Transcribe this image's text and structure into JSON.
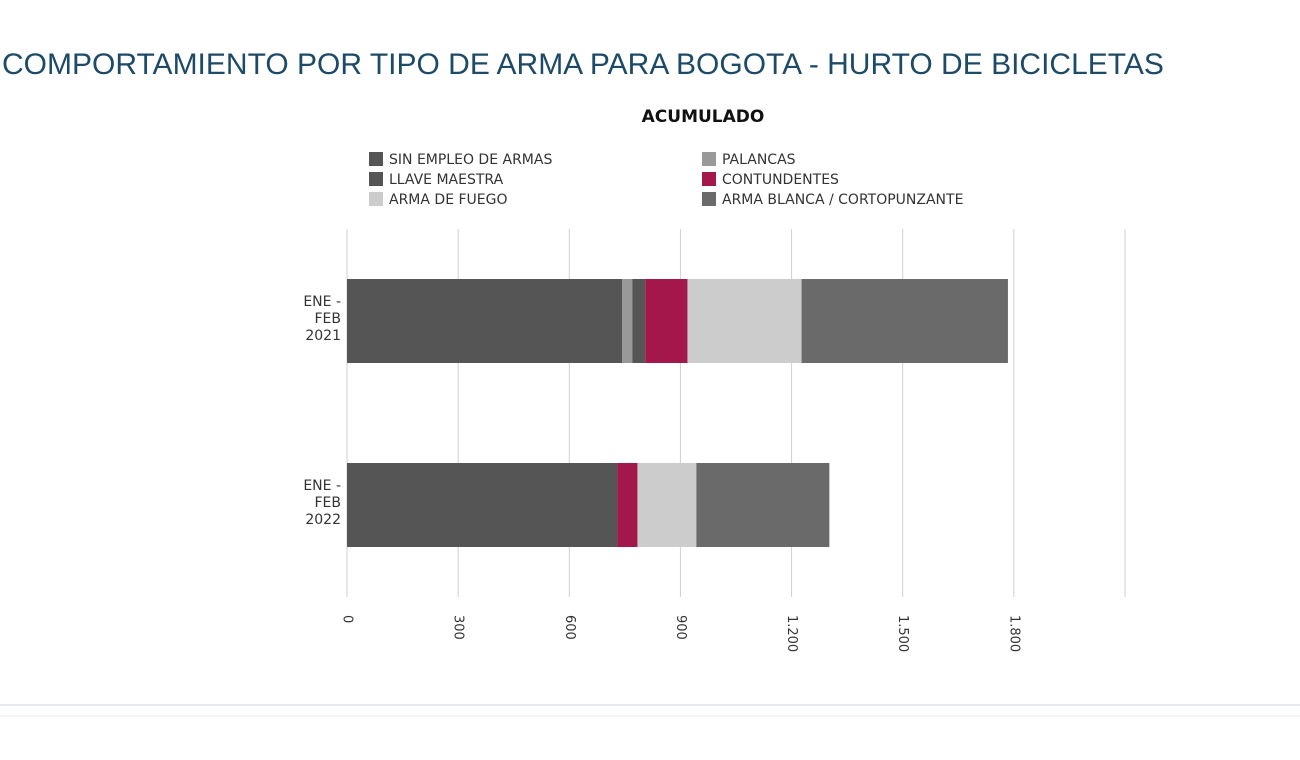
{
  "chart_data": {
    "type": "stacked_barh",
    "title": "COMPORTAMIENTO POR TIPO DE ARMA PARA BOGOTA - HURTO DE BICICLETAS",
    "subtitle": "ACUMULADO",
    "categories": [
      "ENE - FEB 2021",
      "ENE - FEB 2022"
    ],
    "series": [
      {
        "name": "SIN EMPLEO DE ARMAS",
        "color": "#555555",
        "values": [
          743,
          730
        ]
      },
      {
        "name": "PALANCAS",
        "color": "#999999",
        "values": [
          27,
          0
        ]
      },
      {
        "name": "LLAVE MAESTRA",
        "color": "#555555",
        "values": [
          35,
          0
        ]
      },
      {
        "name": "CONTUNDENTES",
        "color": "#a3174a",
        "values": [
          114,
          54
        ]
      },
      {
        "name": "ARMA DE FUEGO",
        "color": "#cccccc",
        "values": [
          308,
          159
        ]
      },
      {
        "name": "ARMA BLANCA / CORTOPUNZANTE",
        "color": "#6a6a6a",
        "values": [
          557,
          359
        ]
      }
    ],
    "xlim": [
      0,
      2100
    ],
    "xticks": [
      0,
      300,
      600,
      {
        "value": 900,
        "label": "900"
      },
      {
        "value": 1200,
        "label": "1.200"
      },
      {
        "value": 1500,
        "label": "1.500"
      },
      {
        "value": 1800,
        "label": "1.800"
      }
    ],
    "grid": true
  }
}
